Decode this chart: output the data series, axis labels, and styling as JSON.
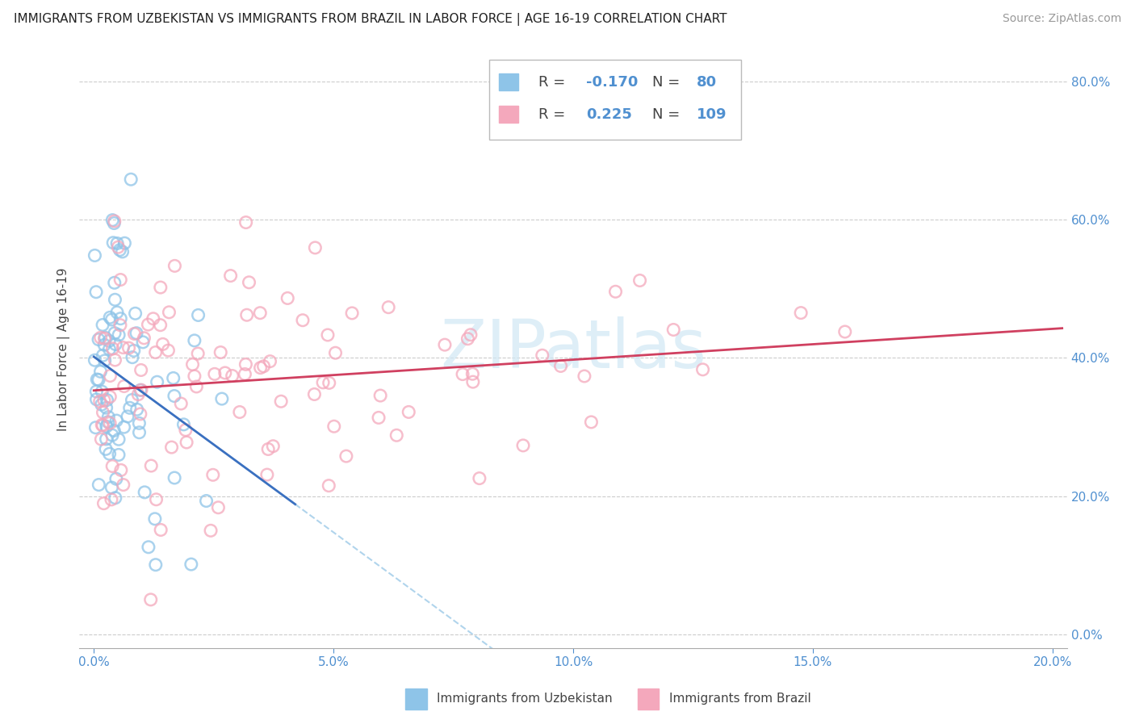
{
  "title": "IMMIGRANTS FROM UZBEKISTAN VS IMMIGRANTS FROM BRAZIL IN LABOR FORCE | AGE 16-19 CORRELATION CHART",
  "source": "Source: ZipAtlas.com",
  "ylabel_label": "In Labor Force | Age 16-19",
  "legend_label1": "Immigrants from Uzbekistan",
  "legend_label2": "Immigrants from Brazil",
  "color_uzbekistan": "#8EC4E8",
  "color_brazil": "#F4A8BC",
  "color_trend_uzbekistan": "#3A70C0",
  "color_trend_brazil": "#D04060",
  "color_dashed": "#B0D4EC",
  "color_axis": "#5090D0",
  "watermark_text": "ZIPatlas",
  "watermark_color": "#D0E8F4",
  "R1": -0.17,
  "N1": 80,
  "R2": 0.225,
  "N2": 109,
  "title_fontsize": 11,
  "source_fontsize": 10,
  "tick_fontsize": 11,
  "legend_fontsize": 13
}
